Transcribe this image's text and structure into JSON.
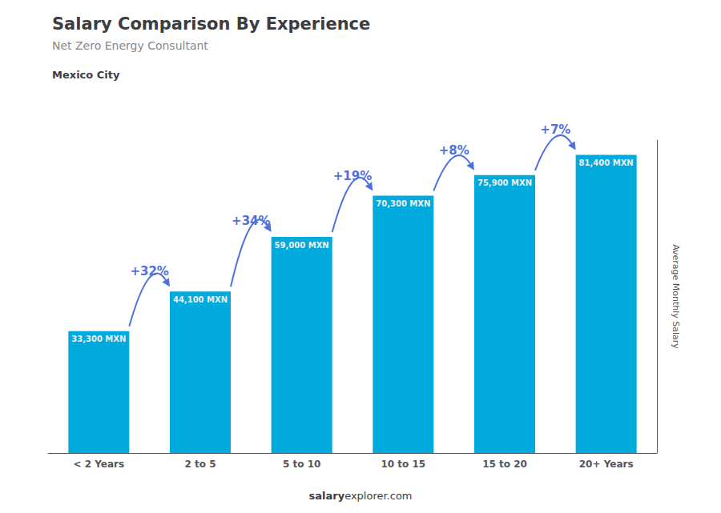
{
  "chart_data": {
    "type": "bar",
    "title": "Salary Comparison By Experience",
    "subtitle": "Net Zero Energy Consultant",
    "city": "Mexico City",
    "categories": [
      "< 2 Years",
      "2 to 5",
      "5 to 10",
      "10 to 15",
      "15 to 20",
      "20+ Years"
    ],
    "values": [
      33300,
      44100,
      59000,
      70300,
      75900,
      81400
    ],
    "value_labels": [
      "33,300 MXN",
      "44,100 MXN",
      "59,000 MXN",
      "70,300 MXN",
      "75,900 MXN",
      "81,400 MXN"
    ],
    "data_labels": true,
    "color": "#00AADD",
    "ylabel": "Average Monthly Salary",
    "ylim": [
      0,
      85470
    ],
    "tick_labels": "x",
    "grid": false,
    "annotations": [
      {
        "text": "+32%",
        "from": "< 2 Years",
        "to": "2 to 5"
      },
      {
        "text": "+34%",
        "from": "2 to 5",
        "to": "5 to 10"
      },
      {
        "text": "+19%",
        "from": "5 to 10",
        "to": "10 to 15"
      },
      {
        "text": "+8%",
        "from": "10 to 15",
        "to": "15 to 20"
      },
      {
        "text": "+7%",
        "from": "15 to 20",
        "to": "20+ Years"
      }
    ],
    "footer": [
      "salary",
      "explorer.com"
    ]
  }
}
